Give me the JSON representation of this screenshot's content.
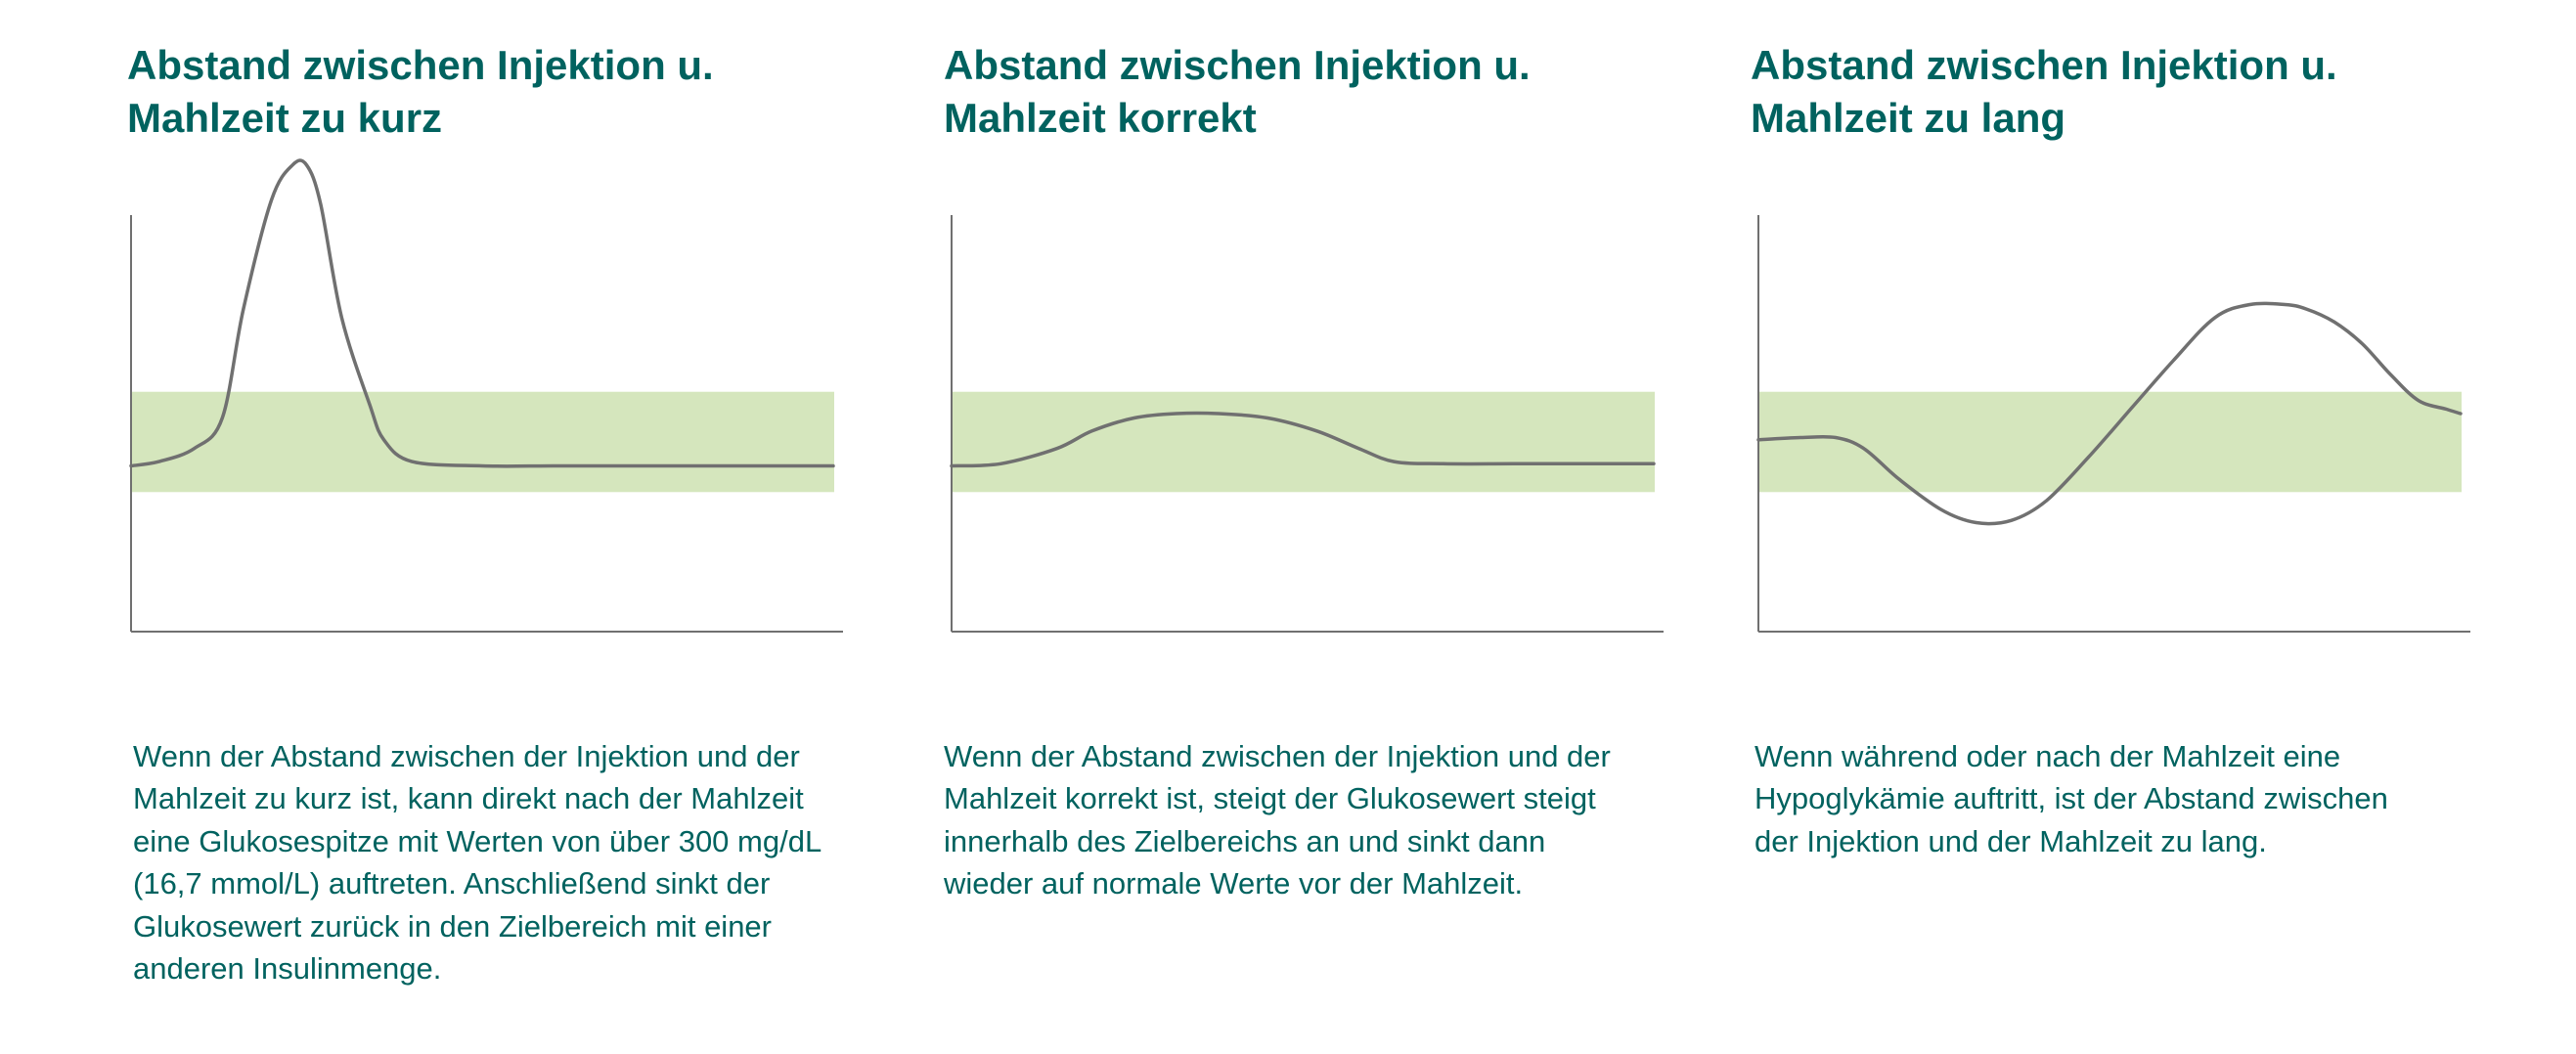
{
  "colors": {
    "title": "#00625f",
    "text": "#00625f",
    "axis": "#707070",
    "curve": "#707070",
    "target_band": "#d5e6bd"
  },
  "panels": [
    {
      "title": [
        "Abstand zwischen Injektion u.",
        "Mahlzeit zu kurz"
      ],
      "description": [
        "Wenn der Abstand zwischen der Injektion und der",
        "Mahlzeit zu kurz ist, kann direkt nach der Mahlzeit",
        "eine Glukosespitze mit Werten von über 300 mg/dL",
        "(16,7 mmol/L) auftreten. Anschließend sinkt der",
        "Glukosewert zurück in den Zielbereich mit einer",
        "anderen Insulinmenge."
      ]
    },
    {
      "title": [
        "Abstand zwischen Injektion u.",
        "Mahlzeit korrekt"
      ],
      "description": [
        "Wenn der Abstand zwischen der Injektion und der",
        "Mahlzeit korrekt ist, steigt der Glukosewert steigt",
        "innerhalb des Zielbereichs an und sinkt dann",
        "wieder auf normale Werte vor der Mahlzeit."
      ]
    },
    {
      "title": [
        "Abstand zwischen Injektion u.",
        "Mahlzeit zu lang"
      ],
      "description": [
        "Wenn während oder nach der Mahlzeit eine",
        "Hypoglykämie auftritt, ist der Abstand zwischen",
        "der Injektion und der Mahlzeit zu lang."
      ]
    }
  ],
  "chart_data": [
    {
      "type": "line",
      "title": "Abstand zwischen Injektion u. Mahlzeit zu kurz",
      "xlabel": "",
      "ylabel": "",
      "xlim": [
        0,
        100
      ],
      "ylim": [
        0,
        100
      ],
      "target_range": [
        32,
        55
      ],
      "grid": false,
      "series": [
        {
          "x": [
            0,
            4,
            9,
            13,
            16,
            20,
            23,
            25,
            27,
            30,
            34,
            36,
            40,
            50,
            60,
            70,
            80,
            90,
            100
          ],
          "y": [
            38,
            39,
            42,
            49,
            74,
            99,
            107,
            107,
            98,
            72,
            52,
            44,
            39,
            38,
            38,
            38,
            38,
            38,
            38
          ]
        }
      ]
    },
    {
      "type": "line",
      "title": "Abstand zwischen Injektion u. Mahlzeit korrekt",
      "xlabel": "",
      "ylabel": "",
      "xlim": [
        0,
        100
      ],
      "ylim": [
        0,
        100
      ],
      "target_range": [
        32,
        55
      ],
      "grid": false,
      "series": [
        {
          "x": [
            0,
            7,
            15,
            20,
            26,
            32,
            38,
            45,
            52,
            58,
            63,
            70,
            80,
            90,
            100
          ],
          "y": [
            38,
            38.5,
            42,
            46,
            49,
            50,
            50,
            49,
            46,
            42,
            39,
            38.5,
            38.5,
            38.5,
            38.5
          ]
        }
      ]
    },
    {
      "type": "line",
      "title": "Abstand zwischen Injektion u. Mahlzeit zu lang",
      "xlabel": "",
      "ylabel": "",
      "xlim": [
        0,
        100
      ],
      "ylim": [
        0,
        100
      ],
      "target_range": [
        32,
        55
      ],
      "grid": false,
      "series": [
        {
          "x": [
            0,
            6,
            11,
            15,
            20,
            26,
            31,
            36,
            41,
            47,
            53,
            59,
            65,
            70,
            75,
            78,
            82,
            86,
            90,
            94,
            98,
            100
          ],
          "y": [
            44,
            44.5,
            44.5,
            42,
            35,
            28,
            25,
            25.5,
            30,
            40,
            51,
            62,
            72,
            75,
            75,
            74,
            71,
            66,
            59,
            53,
            51,
            50
          ]
        }
      ]
    }
  ]
}
